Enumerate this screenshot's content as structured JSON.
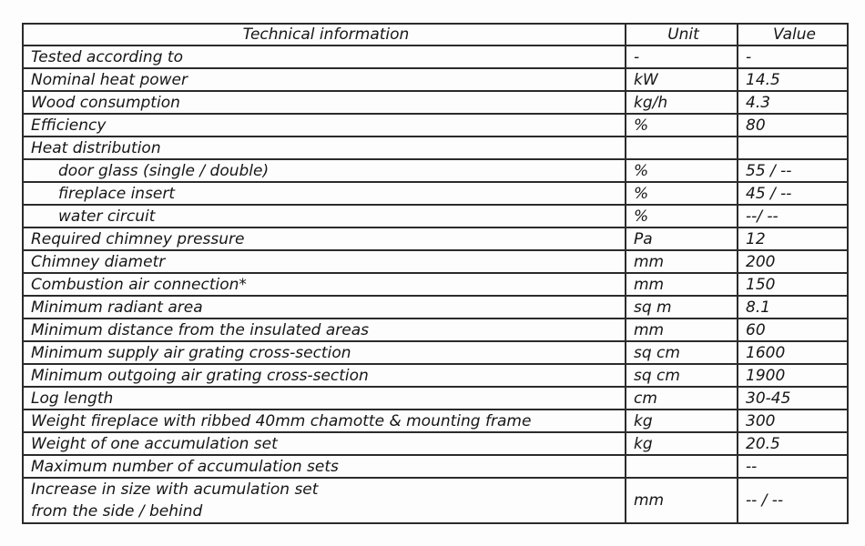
{
  "table": {
    "title_note": "technical specification table",
    "colors": {
      "border": "#2b2b2b",
      "text": "#161616",
      "background": "#fdfdfd"
    },
    "headers": {
      "info": "Technical information",
      "unit": "Unit",
      "value": "Value"
    },
    "rows": [
      {
        "label": "Tested according to",
        "unit": "-",
        "value": "-"
      },
      {
        "label": "Nominal heat power",
        "unit": "kW",
        "value": "14.5"
      },
      {
        "label": "Wood consumption",
        "unit": "kg/h",
        "value": "4.3"
      },
      {
        "label": "Efficiency",
        "unit": "%",
        "value": "80"
      },
      {
        "label": "Heat distribution",
        "unit": "",
        "value": ""
      },
      {
        "label": "door glass (single / double)",
        "unit": "%",
        "value": "55 / --"
      },
      {
        "label": "fireplace insert",
        "unit": "%",
        "value": "45 / --"
      },
      {
        "label": "water circuit",
        "unit": "%",
        "value": "--/ --"
      },
      {
        "label": "Required chimney pressure",
        "unit": "Pa",
        "value": "12"
      },
      {
        "label": "Chimney diametr",
        "unit": "mm",
        "value": "200"
      },
      {
        "label": "Combustion air connection*",
        "unit": "mm",
        "value": "150"
      },
      {
        "label": "Minimum radiant area",
        "unit": "sq m",
        "value": "8.1"
      },
      {
        "label": "Minimum distance from the insulated areas",
        "unit": "mm",
        "value": "60"
      },
      {
        "label": "Minimum supply air grating cross-section",
        "unit": "sq cm",
        "value": "1600"
      },
      {
        "label": "Minimum outgoing air grating cross-section",
        "unit": "sq cm",
        "value": "1900"
      },
      {
        "label": "Log length",
        "unit": "cm",
        "value": "30-45"
      },
      {
        "label": "Weight fireplace with ribbed 40mm chamotte & mounting frame",
        "unit": "kg",
        "value": "300"
      },
      {
        "label": "Weight of one accumulation set",
        "unit": "kg",
        "value": "20.5"
      },
      {
        "label": "Maximum number of accumulation sets",
        "unit": "",
        "value": "--"
      },
      {
        "label": "Increase in size with acumulation set\nfrom the side / behind",
        "unit": "mm",
        "value": "-- / --"
      }
    ]
  }
}
